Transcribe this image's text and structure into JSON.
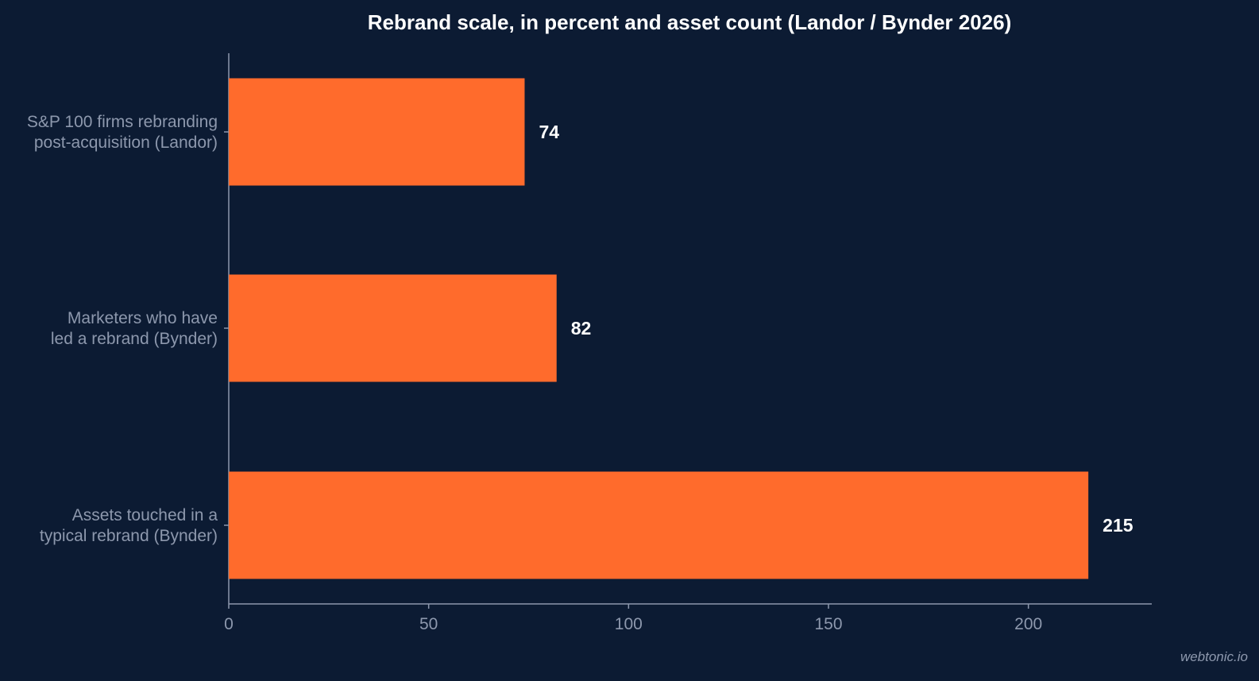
{
  "colors": {
    "background": "#0c1b33",
    "bar": "#ff6b2c",
    "axis": "#8d98ad",
    "text_muted": "#8d98ad",
    "text_strong": "#ffffff"
  },
  "watermark": "webtonic.io",
  "chart_data": {
    "type": "bar",
    "orientation": "horizontal",
    "title": "Rebrand scale, in percent and asset count (Landor / Bynder 2026)",
    "xlabel": "",
    "ylabel": "",
    "categories": [
      [
        "S&P 100 firms rebranding",
        "post-acquisition (Landor)"
      ],
      [
        "Marketers who have",
        "led a rebrand (Bynder)"
      ],
      [
        "Assets touched in a",
        "typical rebrand (Bynder)"
      ]
    ],
    "values": [
      74,
      82,
      215
    ],
    "value_labels": [
      "74",
      "82",
      "215"
    ],
    "xlim": [
      0,
      240
    ],
    "xticks": [
      0,
      50,
      100,
      150,
      200
    ],
    "xtick_labels": [
      "0",
      "50",
      "100",
      "150",
      "200"
    ],
    "grid": false,
    "legend": "none"
  }
}
